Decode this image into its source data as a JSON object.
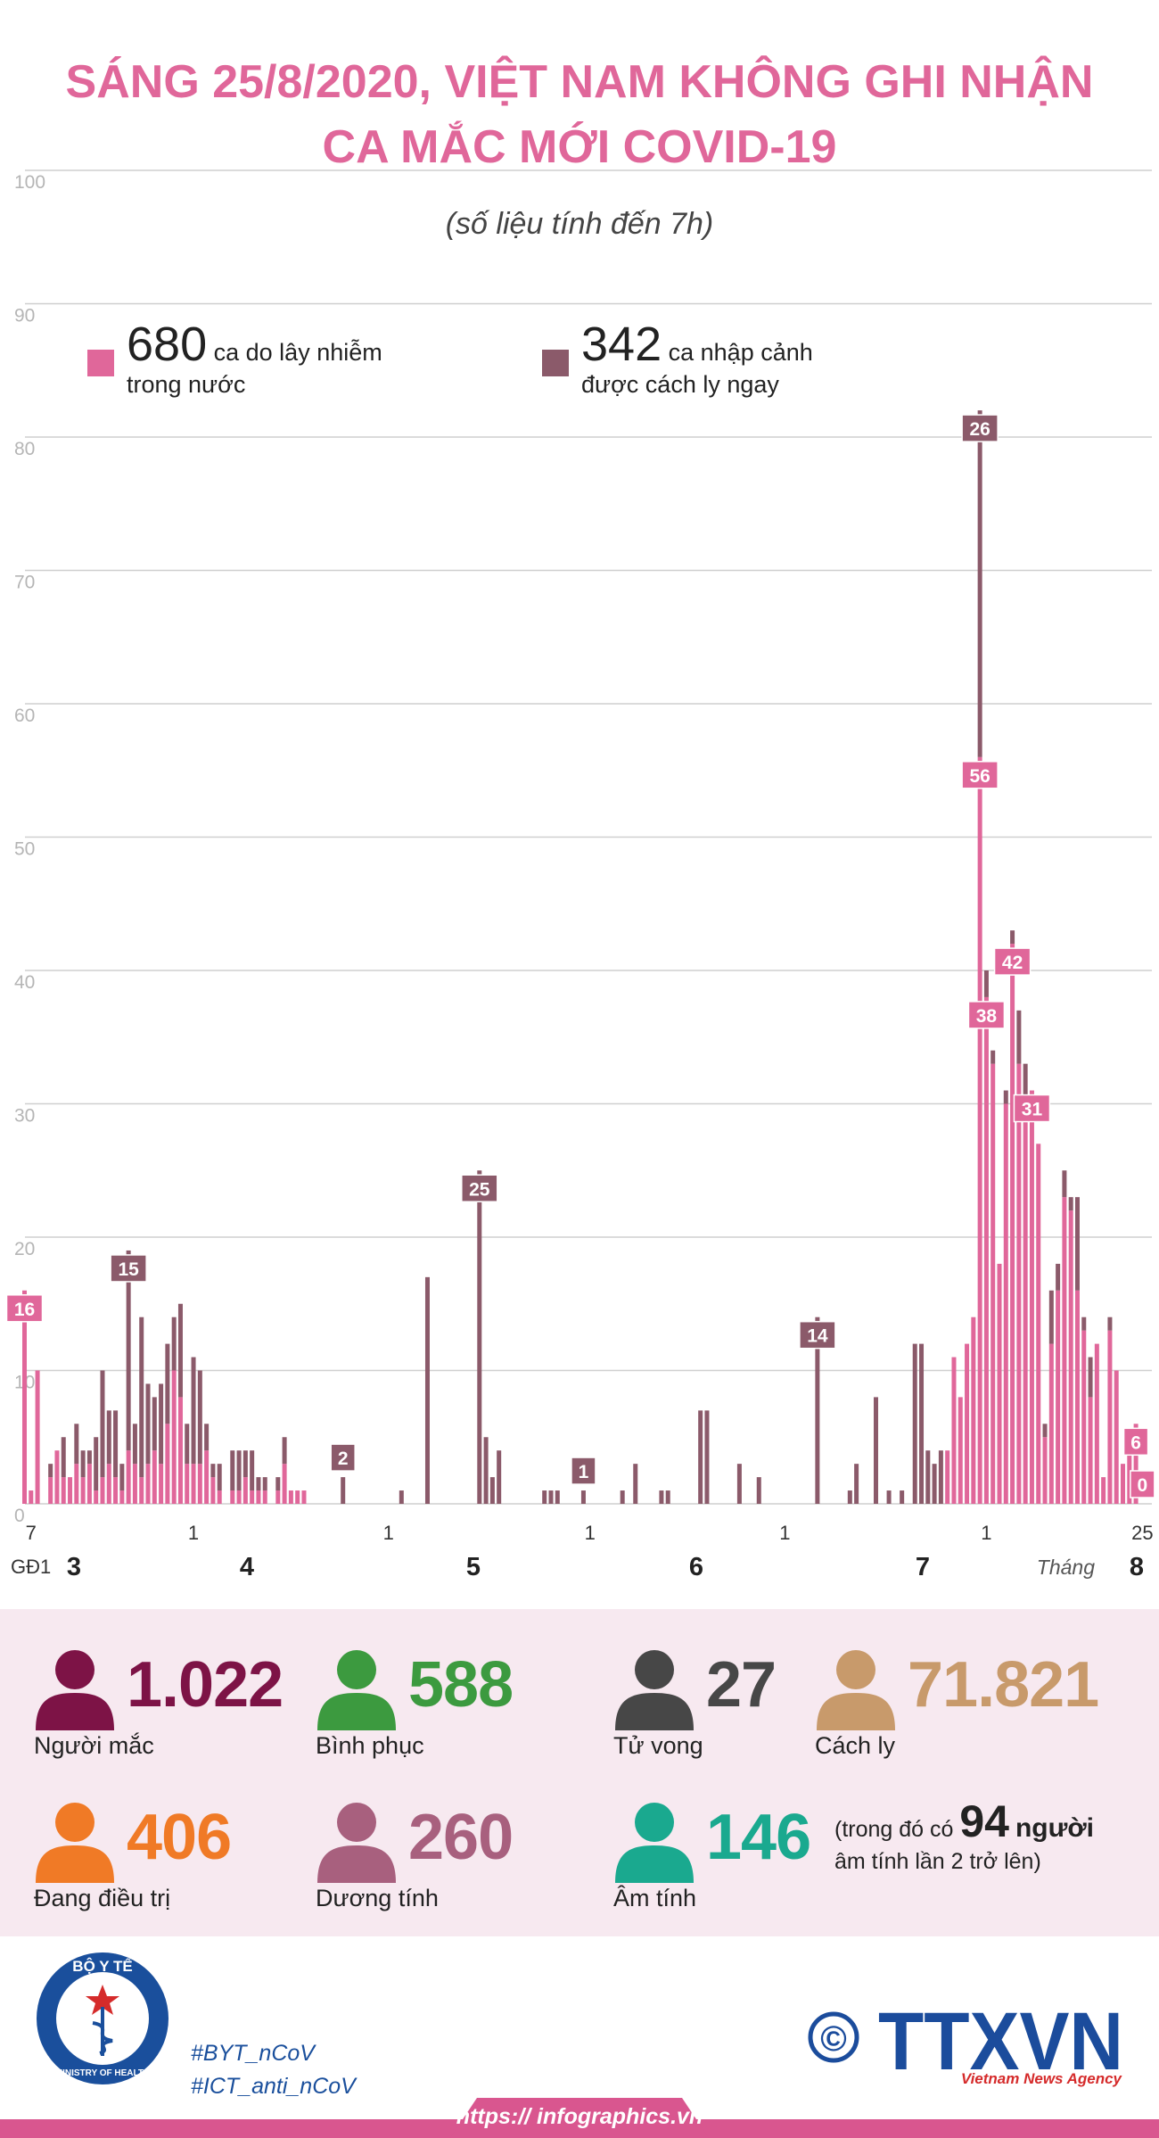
{
  "header": {
    "title_lines": [
      "SÁNG 25/8/2020, VIỆT NAM KHÔNG GHI NHẬN",
      "CA MẮC MỚI COVID-19"
    ],
    "subtitle": "(số liệu tính đến 7h)"
  },
  "chart_data": {
    "type": "bar",
    "stacked": true,
    "grid": true,
    "categories": [
      "GĐ1",
      "7",
      null,
      null,
      null,
      null,
      null,
      null,
      null,
      null,
      null,
      null,
      null,
      null,
      null,
      null,
      null,
      null,
      null,
      null,
      null,
      null,
      null,
      null,
      null,
      null,
      "1",
      null,
      null,
      null,
      null,
      null,
      null,
      null,
      null,
      null,
      null,
      null,
      null,
      null,
      null,
      null,
      null,
      null,
      null,
      null,
      null,
      null,
      null,
      null,
      null,
      null,
      null,
      null,
      null,
      null,
      "1",
      null,
      null,
      null,
      null,
      null,
      null,
      null,
      null,
      null,
      null,
      null,
      null,
      null,
      null,
      null,
      null,
      null,
      null,
      null,
      null,
      null,
      null,
      null,
      null,
      null,
      null,
      null,
      null,
      null,
      null,
      "1",
      null,
      null,
      null,
      null,
      null,
      null,
      null,
      null,
      null,
      null,
      null,
      null,
      null,
      null,
      null,
      null,
      null,
      null,
      null,
      null,
      null,
      null,
      null,
      null,
      null,
      null,
      null,
      null,
      null,
      "1",
      null,
      null,
      null,
      null,
      null,
      null,
      null,
      null,
      null,
      null,
      null,
      null,
      null,
      null,
      null,
      null,
      null,
      null,
      null,
      null,
      null,
      null,
      null,
      null,
      null,
      null,
      null,
      null,
      null,
      null,
      "1",
      null,
      null,
      null,
      null,
      null,
      null,
      null,
      null,
      null,
      null,
      null,
      null,
      null,
      null,
      null,
      null,
      null,
      null,
      null,
      null,
      null,
      null,
      null,
      "25"
    ],
    "month_labels": [
      "3",
      "4",
      "5",
      "6",
      "7",
      "8"
    ],
    "month_axis_label": "Tháng",
    "series": [
      {
        "name": "ca do lây nhiễm trong nước",
        "total": 680,
        "color": "#e0679a",
        "values": [
          16,
          1,
          10,
          0,
          2,
          4,
          2,
          2,
          3,
          2,
          3,
          1,
          2,
          3,
          2,
          1,
          4,
          3,
          2,
          3,
          4,
          3,
          6,
          10,
          8,
          3,
          3,
          3,
          4,
          2,
          1,
          0,
          1,
          1,
          2,
          1,
          1,
          1,
          0,
          1,
          3,
          1,
          1,
          1,
          0,
          0,
          0,
          0,
          0,
          0,
          0,
          0,
          0,
          0,
          0,
          0,
          0,
          0,
          0,
          0,
          0,
          0,
          0,
          0,
          0,
          0,
          0,
          0,
          0,
          0,
          0,
          0,
          0,
          0,
          0,
          0,
          0,
          0,
          0,
          0,
          0,
          0,
          0,
          0,
          0,
          0,
          0,
          0,
          0,
          0,
          0,
          0,
          0,
          0,
          0,
          0,
          0,
          0,
          0,
          0,
          0,
          0,
          0,
          0,
          0,
          0,
          0,
          0,
          0,
          0,
          0,
          0,
          0,
          0,
          0,
          0,
          0,
          0,
          0,
          0,
          0,
          0,
          0,
          0,
          0,
          0,
          0,
          0,
          0,
          0,
          0,
          0,
          0,
          0,
          0,
          0,
          0,
          0,
          0,
          0,
          0,
          0,
          4,
          11,
          8,
          12,
          14,
          56,
          38,
          33,
          18,
          30,
          42,
          33,
          30,
          31,
          27,
          5,
          12,
          16,
          23,
          22,
          16,
          13,
          8,
          12,
          2,
          13,
          10,
          3,
          5,
          6,
          0
        ],
        "value_labels": {
          "0": "16",
          "147": "56",
          "148": "38",
          "152": "42",
          "155": "31",
          "171": "6",
          "172": "0"
        }
      },
      {
        "name": "ca nhập cảnh được cách ly ngay",
        "total": 342,
        "color": "#8b5a6a",
        "values": [
          0,
          0,
          0,
          0,
          1,
          0,
          3,
          0,
          3,
          2,
          1,
          4,
          8,
          4,
          5,
          2,
          15,
          3,
          12,
          6,
          4,
          6,
          6,
          4,
          7,
          3,
          8,
          7,
          2,
          1,
          2,
          0,
          3,
          3,
          2,
          3,
          1,
          1,
          0,
          1,
          2,
          0,
          0,
          0,
          0,
          0,
          0,
          0,
          0,
          2,
          0,
          0,
          0,
          0,
          0,
          0,
          0,
          0,
          1,
          0,
          0,
          0,
          17,
          0,
          0,
          0,
          0,
          0,
          0,
          0,
          25,
          5,
          2,
          4,
          0,
          0,
          0,
          0,
          0,
          0,
          1,
          1,
          1,
          0,
          0,
          0,
          1,
          0,
          0,
          0,
          0,
          0,
          1,
          0,
          3,
          0,
          0,
          0,
          1,
          1,
          0,
          0,
          0,
          0,
          7,
          7,
          0,
          0,
          0,
          0,
          3,
          0,
          0,
          2,
          0,
          0,
          0,
          0,
          0,
          0,
          0,
          0,
          14,
          0,
          0,
          0,
          0,
          1,
          3,
          0,
          0,
          8,
          0,
          1,
          0,
          1,
          0,
          12,
          12,
          4,
          3,
          4,
          0,
          0,
          0,
          0,
          0,
          26,
          2,
          1,
          0,
          1,
          1,
          4,
          3,
          0,
          0,
          1,
          4,
          2,
          2,
          1,
          7,
          1,
          3,
          0,
          0,
          1,
          0,
          0,
          0,
          0,
          0
        ],
        "value_labels": {
          "16": "15",
          "49": "2",
          "70": "25",
          "86": "1",
          "122": "14",
          "147": "26"
        }
      }
    ],
    "ylim": [
      0,
      100
    ],
    "yticks": [
      0,
      10,
      20,
      30,
      40,
      50,
      60,
      70,
      80,
      90,
      100
    ]
  },
  "stats": {
    "items": [
      {
        "value": "1.022",
        "label": "Người mắc",
        "color": "#7d1346"
      },
      {
        "value": "588",
        "label": "Bình phục",
        "color": "#3c9a3f"
      },
      {
        "value": "27",
        "label": "Tử vong",
        "color": "#474747"
      },
      {
        "value": "71.821",
        "label": "Cách ly",
        "color": "#c89a6b"
      },
      {
        "value": "406",
        "label": "Đang điều trị",
        "color": "#f07a26"
      },
      {
        "value": "260",
        "label": "Dương tính",
        "color": "#a8607e"
      },
      {
        "value": "146",
        "label": "Âm tính",
        "color": "#1aa98f"
      }
    ],
    "note": {
      "prefix": "(trong đó có",
      "number": "94",
      "unit": "người",
      "line2": "âm tính lần 2 trở lên)"
    }
  },
  "footer": {
    "logo_top": "BỘ Y TẾ",
    "logo_bottom": "MINISTRY OF HEALTH",
    "hashtags": [
      "#BYT_nCoV",
      "#ICT_anti_nCoV"
    ],
    "copyright": "©",
    "agency": "TTXVN",
    "agency_sub": "Vietnam News Agency",
    "url": "https:// infographics.vn"
  }
}
